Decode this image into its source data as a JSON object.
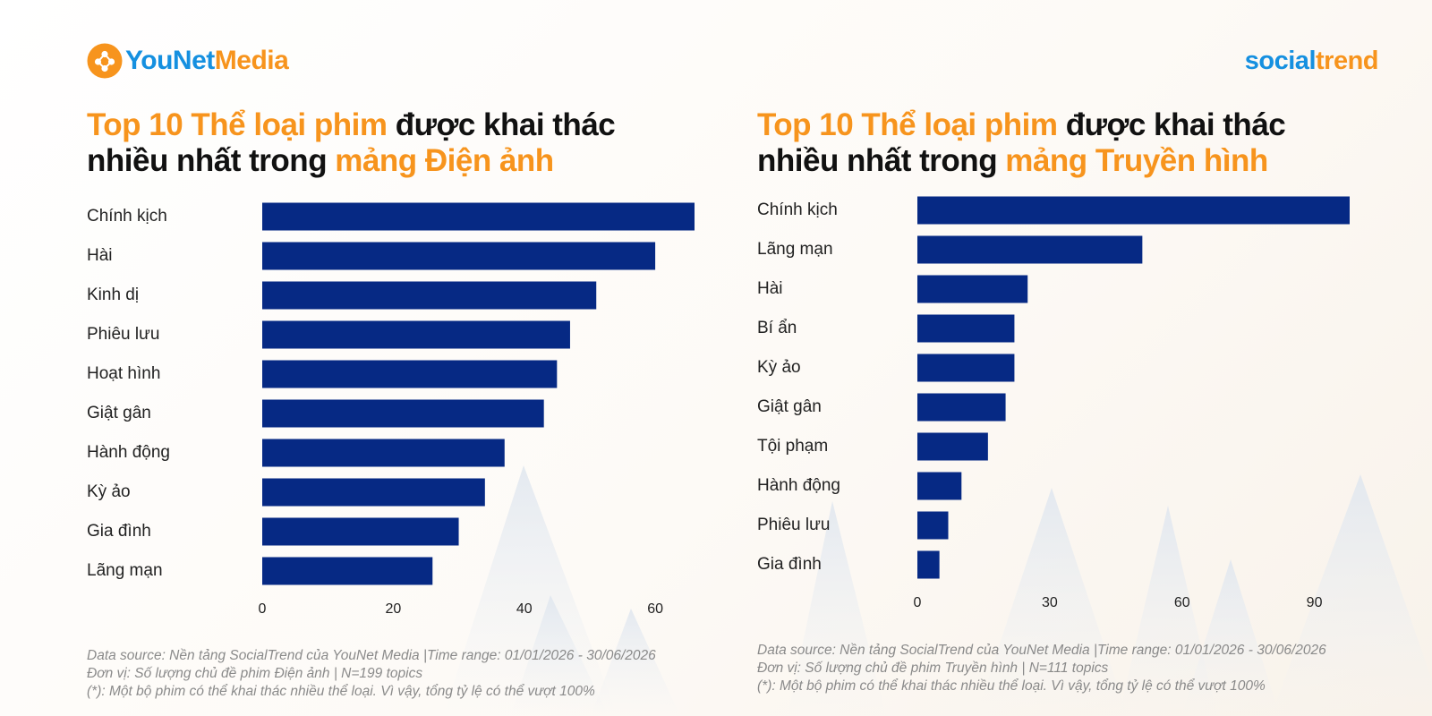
{
  "logos": {
    "younet": {
      "part1": "YouNet",
      "part2": "Media"
    },
    "socialtrend": {
      "part1": "social",
      "part2": "trend"
    }
  },
  "colors": {
    "accent": "#f7941d",
    "brand_blue": "#1590e0",
    "bar": "#062984"
  },
  "panels": [
    {
      "title": {
        "p1": "Top 10 Thể loại phim",
        "p2": " được khai thác",
        "p3": "nhiều nhất trong ",
        "p4": "mảng Điện ảnh"
      },
      "notes": {
        "source": "Data source: Nền tảng SocialTrend của YouNet Media |Time range: 01/01/2026 - 30/06/2026",
        "unit": "Đơn vị: Số lượng chủ đề phim Điện ảnh | N=199 topics",
        "footnote": "(*): Một bộ phim có thể khai thác nhiều thể loại. Vì vậy, tổng tỷ lệ có thể vượt 100%"
      }
    },
    {
      "title": {
        "p1": "Top 10 Thể loại phim",
        "p2": " được khai thác",
        "p3": "nhiều nhất trong ",
        "p4": "mảng Truyền hình"
      },
      "notes": {
        "source": "Data source: Nền tảng SocialTrend của YouNet Media |Time range: 01/01/2026 - 30/06/2026",
        "unit": "Đơn vị: Số lượng chủ đề phim Truyền hình | N=111 topics",
        "footnote": "(*): Một bộ phim có thể khai thác nhiều thể loại. Vì vậy, tổng tỷ lệ có thể vượt 100%"
      }
    }
  ],
  "chart_data": [
    {
      "type": "bar",
      "orientation": "horizontal",
      "title": "Top 10 Thể loại phim được khai thác nhiều nhất trong mảng Điện ảnh",
      "categories": [
        "Chính kịch",
        "Hài",
        "Kinh dị",
        "Phiêu lưu",
        "Hoạt hình",
        "Giật gân",
        "Hành động",
        "Kỳ ảo",
        "Gia đình",
        "Lãng mạn"
      ],
      "values": [
        66,
        60,
        51,
        47,
        45,
        43,
        37,
        34,
        30,
        26
      ],
      "xticks": [
        0,
        20,
        40,
        60
      ],
      "xlim": [
        0,
        66
      ],
      "grid": false,
      "legend": "none",
      "xlabel": "",
      "ylabel": ""
    },
    {
      "type": "bar",
      "orientation": "horizontal",
      "title": "Top 10 Thể loại phim được khai thác nhiều nhất trong mảng Truyền hình",
      "categories": [
        "Chính kịch",
        "Lãng mạn",
        "Hài",
        "Bí ẩn",
        "Kỳ ảo",
        "Giật gân",
        "Tội phạm",
        "Hành động",
        "Phiêu lưu",
        "Gia đình"
      ],
      "values": [
        98,
        51,
        25,
        22,
        22,
        20,
        16,
        10,
        7,
        5
      ],
      "xticks": [
        0,
        30,
        60,
        90
      ],
      "xlim": [
        0,
        98
      ],
      "grid": false,
      "legend": "none",
      "xlabel": "",
      "ylabel": ""
    }
  ]
}
